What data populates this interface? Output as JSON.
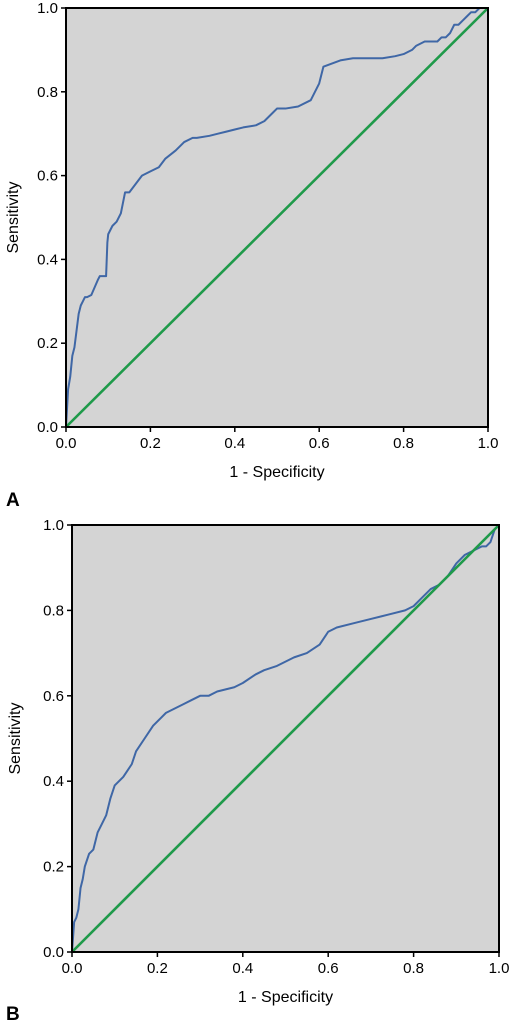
{
  "chart_data": [
    {
      "type": "line",
      "panel": "A",
      "xlabel": "1 - Specificity",
      "ylabel": "Sensitivity",
      "xlim": [
        0,
        1
      ],
      "ylim": [
        0,
        1
      ],
      "xticks": [
        "0.0",
        "0.2",
        "0.4",
        "0.6",
        "0.8",
        "1.0"
      ],
      "yticks": [
        "0.0",
        "0.2",
        "0.4",
        "0.6",
        "0.8",
        "1.0"
      ],
      "grid": false,
      "background_color": "#d4d4d4",
      "series": [
        {
          "color": "#3f67a6",
          "x": [
            0,
            0.005,
            0.01,
            0.015,
            0.02,
            0.03,
            0.035,
            0.04,
            0.045,
            0.05,
            0.06,
            0.075,
            0.08,
            0.085,
            0.095,
            0.098,
            0.1,
            0.11,
            0.12,
            0.13,
            0.14,
            0.15,
            0.165,
            0.18,
            0.2,
            0.22,
            0.235,
            0.26,
            0.28,
            0.3,
            0.31,
            0.34,
            0.36,
            0.38,
            0.4,
            0.42,
            0.45,
            0.47,
            0.49,
            0.5,
            0.52,
            0.55,
            0.58,
            0.6,
            0.61,
            0.65,
            0.68,
            0.7,
            0.75,
            0.78,
            0.8,
            0.82,
            0.83,
            0.85,
            0.88,
            0.89,
            0.9,
            0.91,
            0.92,
            0.93,
            0.94,
            0.95,
            0.96,
            0.97,
            0.98,
            0.99,
            1.0
          ],
          "y": [
            0,
            0.09,
            0.12,
            0.17,
            0.19,
            0.27,
            0.29,
            0.3,
            0.31,
            0.31,
            0.315,
            0.35,
            0.36,
            0.36,
            0.36,
            0.44,
            0.46,
            0.48,
            0.49,
            0.51,
            0.56,
            0.56,
            0.58,
            0.6,
            0.61,
            0.62,
            0.64,
            0.66,
            0.68,
            0.69,
            0.69,
            0.695,
            0.7,
            0.705,
            0.71,
            0.715,
            0.72,
            0.73,
            0.75,
            0.76,
            0.76,
            0.765,
            0.78,
            0.82,
            0.86,
            0.875,
            0.88,
            0.88,
            0.88,
            0.885,
            0.89,
            0.9,
            0.91,
            0.92,
            0.92,
            0.93,
            0.93,
            0.94,
            0.96,
            0.96,
            0.97,
            0.98,
            0.99,
            0.99,
            1.0,
            1.0,
            1.0
          ]
        },
        {
          "color": "#1f9a4a",
          "x": [
            0,
            1
          ],
          "y": [
            0,
            1
          ]
        }
      ]
    },
    {
      "type": "line",
      "panel": "B",
      "xlabel": "1 - Specificity",
      "ylabel": "Sensitivity",
      "xlim": [
        0,
        1
      ],
      "ylim": [
        0,
        1
      ],
      "xticks": [
        "0.0",
        "0.2",
        "0.4",
        "0.6",
        "0.8",
        "1.0"
      ],
      "yticks": [
        "0.0",
        "0.2",
        "0.4",
        "0.6",
        "0.8",
        "1.0"
      ],
      "grid": false,
      "background_color": "#d4d4d4",
      "series": [
        {
          "color": "#3f67a6",
          "x": [
            0,
            0.005,
            0.01,
            0.015,
            0.02,
            0.025,
            0.03,
            0.04,
            0.05,
            0.055,
            0.06,
            0.07,
            0.08,
            0.09,
            0.1,
            0.11,
            0.12,
            0.14,
            0.15,
            0.17,
            0.19,
            0.2,
            0.21,
            0.22,
            0.24,
            0.26,
            0.28,
            0.3,
            0.32,
            0.34,
            0.36,
            0.38,
            0.4,
            0.43,
            0.45,
            0.48,
            0.5,
            0.52,
            0.55,
            0.58,
            0.6,
            0.62,
            0.66,
            0.7,
            0.74,
            0.78,
            0.8,
            0.82,
            0.84,
            0.86,
            0.88,
            0.9,
            0.92,
            0.94,
            0.96,
            0.97,
            0.98,
            0.99,
            1.0
          ],
          "y": [
            0,
            0.07,
            0.08,
            0.1,
            0.15,
            0.17,
            0.2,
            0.23,
            0.24,
            0.26,
            0.28,
            0.3,
            0.32,
            0.36,
            0.39,
            0.4,
            0.41,
            0.44,
            0.47,
            0.5,
            0.53,
            0.54,
            0.55,
            0.56,
            0.57,
            0.58,
            0.59,
            0.6,
            0.6,
            0.61,
            0.615,
            0.62,
            0.63,
            0.65,
            0.66,
            0.67,
            0.68,
            0.69,
            0.7,
            0.72,
            0.75,
            0.76,
            0.77,
            0.78,
            0.79,
            0.8,
            0.81,
            0.83,
            0.85,
            0.86,
            0.88,
            0.91,
            0.93,
            0.94,
            0.95,
            0.95,
            0.96,
            0.99,
            1.0
          ]
        },
        {
          "color": "#1f9a4a",
          "x": [
            0,
            1
          ],
          "y": [
            0,
            1
          ]
        }
      ]
    }
  ]
}
